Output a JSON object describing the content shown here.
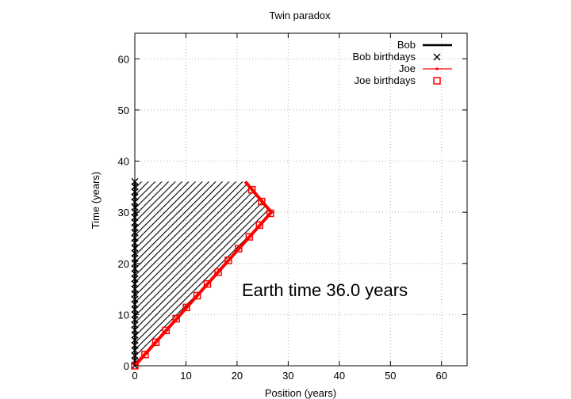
{
  "chart_data": {
    "type": "line",
    "title": "Twin paradox",
    "xlabel": "Position (years)",
    "ylabel": "Time (years)",
    "xlim": [
      0,
      65
    ],
    "ylim": [
      0,
      65
    ],
    "xticks": [
      0,
      10,
      20,
      30,
      40,
      50,
      60
    ],
    "yticks": [
      0,
      10,
      20,
      30,
      40,
      50,
      60
    ],
    "grid": true,
    "legend_position": "top-right",
    "annotation": "Earth time 36.0 years",
    "colors": {
      "bob": "#000000",
      "joe": "#ff0000",
      "grid": "#b0b0b0"
    },
    "series": [
      {
        "name": "Bob",
        "type": "line",
        "x": [
          0,
          0
        ],
        "y": [
          0,
          36
        ]
      },
      {
        "name": "Bob birthdays",
        "type": "scatter",
        "marker": "x",
        "x": [
          0,
          0,
          0,
          0,
          0,
          0,
          0,
          0,
          0,
          0,
          0,
          0,
          0,
          0,
          0,
          0,
          0,
          0,
          0,
          0,
          0,
          0,
          0,
          0,
          0,
          0,
          0,
          0,
          0,
          0,
          0,
          0,
          0,
          0,
          0,
          0,
          0
        ],
        "y": [
          0,
          1,
          2,
          3,
          4,
          5,
          6,
          7,
          8,
          9,
          10,
          11,
          12,
          13,
          14,
          15,
          16,
          17,
          18,
          19,
          20,
          21,
          22,
          23,
          24,
          25,
          26,
          27,
          28,
          29,
          30,
          31,
          32,
          33,
          34,
          35,
          36
        ]
      },
      {
        "name": "Joe",
        "type": "line",
        "x": [
          0,
          26.7,
          21.6
        ],
        "y": [
          0,
          30,
          36
        ]
      },
      {
        "name": "Joe birthdays",
        "type": "scatter",
        "marker": "square",
        "x": [
          0,
          2.0,
          4.1,
          6.1,
          8.1,
          10.1,
          12.2,
          14.2,
          16.3,
          18.3,
          20.3,
          22.4,
          24.4,
          26.5,
          24.8,
          22.9
        ],
        "y": [
          0,
          2.2,
          4.6,
          6.9,
          9.2,
          11.4,
          13.7,
          16.0,
          18.3,
          20.6,
          22.9,
          25.2,
          27.5,
          29.8,
          32.1,
          34.4
        ]
      }
    ]
  }
}
